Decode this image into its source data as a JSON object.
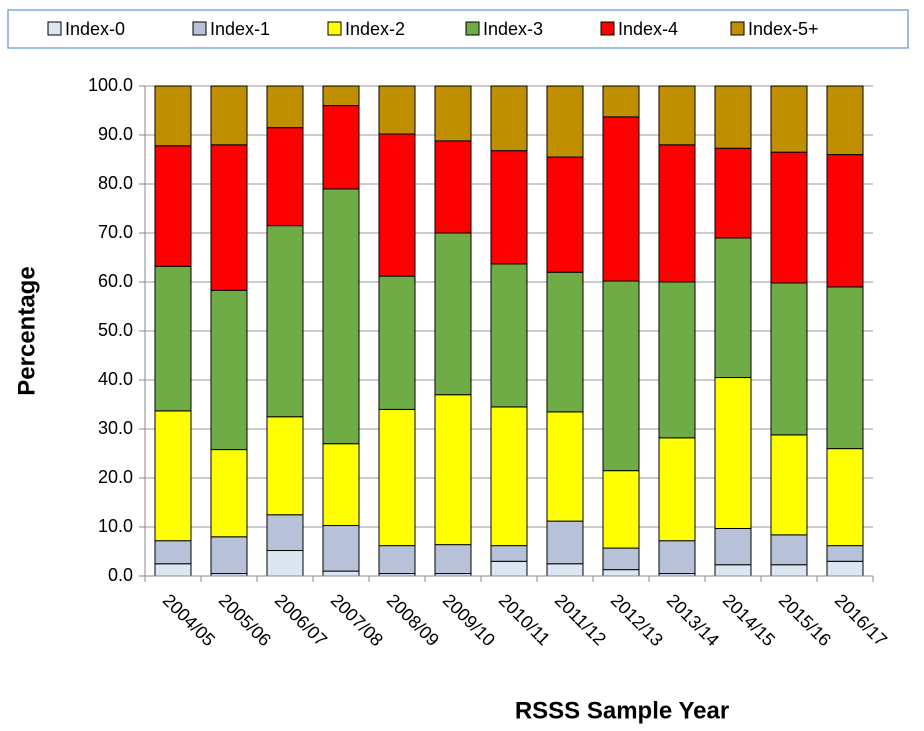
{
  "chart_data": {
    "type": "stacked_bar",
    "xlabel": "RSSS Sample Year",
    "ylabel": "Percentage",
    "categories": [
      "2004/05",
      "2005/06",
      "2006/07",
      "2007/08",
      "2008/09",
      "2009/10",
      "2010/11",
      "2011/12",
      "2012/13",
      "2013/14",
      "2014/15",
      "2015/16",
      "2016/17"
    ],
    "series": [
      {
        "name": "Index-0",
        "color": "#dce6f2",
        "values": [
          2.5,
          0.5,
          5.2,
          1.0,
          0.5,
          0.5,
          3.0,
          2.5,
          1.3,
          0.5,
          2.3,
          2.3,
          3.0
        ]
      },
      {
        "name": "Index-1",
        "color": "#b7c2d9",
        "values": [
          4.7,
          7.5,
          7.3,
          9.3,
          5.7,
          5.9,
          3.2,
          8.7,
          4.4,
          6.7,
          7.4,
          6.1,
          3.2
        ]
      },
      {
        "name": "Index-2",
        "color": "#ffff00",
        "values": [
          26.5,
          17.8,
          20.0,
          16.7,
          27.8,
          30.6,
          28.3,
          22.3,
          15.8,
          21.0,
          30.8,
          20.4,
          19.8
        ]
      },
      {
        "name": "Index-3",
        "color": "#6fac46",
        "values": [
          29.5,
          32.5,
          39.0,
          52.0,
          27.2,
          33.0,
          29.2,
          28.5,
          38.7,
          31.8,
          28.5,
          31.0,
          33.0
        ]
      },
      {
        "name": "Index-4",
        "color": "#ff0000",
        "values": [
          24.6,
          29.7,
          20.0,
          17.0,
          29.0,
          18.8,
          23.1,
          23.5,
          33.5,
          28.0,
          18.3,
          26.7,
          27.0
        ]
      },
      {
        "name": "Index-5+",
        "color": "#bf8f00",
        "values": [
          12.2,
          12.0,
          8.5,
          4.0,
          9.8,
          11.2,
          13.2,
          14.5,
          6.3,
          12.0,
          12.7,
          13.5,
          14.0
        ]
      }
    ],
    "ylim": [
      0,
      100
    ],
    "yticks": [
      {
        "value": 0,
        "label": "0.0"
      },
      {
        "value": 10,
        "label": "10.0"
      },
      {
        "value": 20,
        "label": "20.0"
      },
      {
        "value": 30,
        "label": "30.0"
      },
      {
        "value": 40,
        "label": "40.0"
      },
      {
        "value": 50,
        "label": "50.0"
      },
      {
        "value": 60,
        "label": "60.0"
      },
      {
        "value": 70,
        "label": "70.0"
      },
      {
        "value": 80,
        "label": "80.0"
      },
      {
        "value": 90,
        "label": "90.0"
      },
      {
        "value": 100,
        "label": "100.0"
      }
    ],
    "grid": true,
    "legend": "top"
  }
}
